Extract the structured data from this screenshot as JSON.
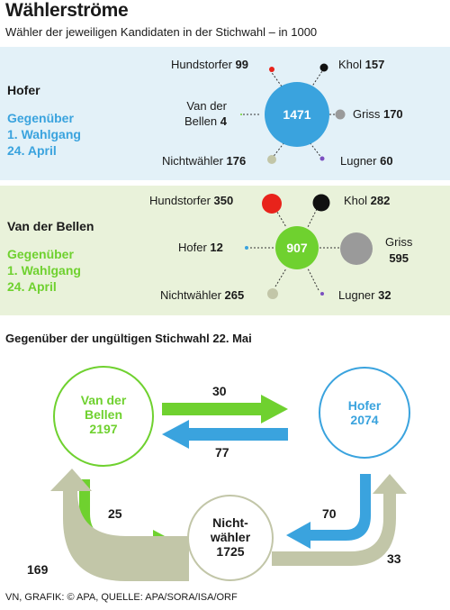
{
  "header": {
    "title": "Wählerströme",
    "subtitle": "Wähler der jeweiligen Kandidaten in der Stichwahl – in 1000"
  },
  "hofer_panel": {
    "name": "Hofer",
    "compare": [
      "Gegenüber",
      "1. Wahlgang",
      "24. April"
    ],
    "center_value": "1471",
    "items": {
      "hundstorfer": {
        "label": "Hundstorfer",
        "value": "99"
      },
      "khol": {
        "label": "Khol",
        "value": "157"
      },
      "vdb": {
        "label1": "Van der",
        "label2": "Bellen",
        "value": "4"
      },
      "griss": {
        "label": "Griss",
        "value": "170"
      },
      "nichtwaehler": {
        "label": "Nichtwähler",
        "value": "176"
      },
      "lugner": {
        "label": "Lugner",
        "value": "60"
      }
    }
  },
  "vdb_panel": {
    "name": "Van der Bellen",
    "compare": [
      "Gegenüber",
      "1. Wahlgang",
      "24. April"
    ],
    "center_value": "907",
    "items": {
      "hundstorfer": {
        "label": "Hundstorfer",
        "value": "350"
      },
      "khol": {
        "label": "Khol",
        "value": "282"
      },
      "hofer": {
        "label": "Hofer",
        "value": "12"
      },
      "griss": {
        "label": "Griss",
        "value": "595"
      },
      "nichtwaehler": {
        "label": "Nichtwähler",
        "value": "265"
      },
      "lugner": {
        "label": "Lugner",
        "value": "32"
      }
    }
  },
  "flows": {
    "title": "Gegenüber der ungültigen Stichwahl 22. Mai",
    "vdb": {
      "line1": "Van der",
      "line2": "Bellen",
      "value": "2197"
    },
    "hofer": {
      "line1": "Hofer",
      "value": "2074"
    },
    "nichtwaehler": {
      "line1": "Nicht-",
      "line2": "wähler",
      "value": "1725"
    },
    "vdb_to_hofer": "30",
    "hofer_to_vdb": "77",
    "vdb_to_nw": "25",
    "nw_to_vdb": "169",
    "hofer_to_nw": "70",
    "nw_to_hofer": "33"
  },
  "colors": {
    "blue": "#3aa3de",
    "green": "#6fd12f",
    "olive": "#c2c6a8",
    "red": "#e8231b",
    "black": "#111111",
    "grey": "#9a9a9a",
    "purple": "#7b4fc0",
    "light_grey": "#c9c9b8"
  },
  "footer": "VN, GRAFIK: © APA, QUELLE: APA/SORA/ISA/ORF"
}
